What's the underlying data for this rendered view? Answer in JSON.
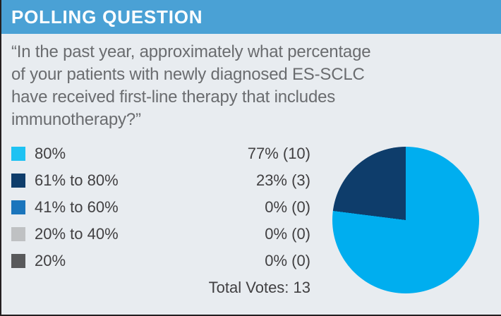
{
  "header": {
    "title": "POLLING QUESTION"
  },
  "question": {
    "text": "“In the past year, approximately what percentage\nof your patients with newly diagnosed ES-SCLC\nhave received first-line therapy that includes\nimmunotherapy?”"
  },
  "poll": {
    "rows": [
      {
        "label": "80%",
        "result": "77% (10)"
      },
      {
        "label": "61% to 80%",
        "result": "23% (3)"
      },
      {
        "label": "41% to 60%",
        "result": "0% (0)"
      },
      {
        "label": "20% to 40%",
        "result": "0% (0)"
      },
      {
        "label": "20%",
        "result": "0% (0)"
      }
    ],
    "total_votes_label": "Total Votes: 13"
  },
  "chart_data": {
    "type": "pie",
    "categories": [
      "80%",
      "61% to 80%",
      "41% to 60%",
      "20% to 40%",
      "20%"
    ],
    "values": [
      77,
      23,
      0,
      0,
      0
    ],
    "counts": [
      10,
      3,
      0,
      0,
      0
    ],
    "total_votes": 13,
    "start_angle_deg": 0,
    "direction": "clockwise",
    "legend_position": "left",
    "slice_colors": [
      "#00AEEF",
      "#0E3D6B",
      "#1B75BC",
      "#BFC1C3",
      "#58595B"
    ],
    "legend_swatch_colors": [
      "#1EC2F3",
      "#0E3D6B",
      "#1B75BC",
      "#BFC1C3",
      "#58595B"
    ]
  },
  "colors": {
    "header_background": "#4AA1D5",
    "page_background": "#E8ECF0",
    "question_text": "#6A6C6F",
    "legend_text": "#414042",
    "frame_border": "#231F20"
  }
}
